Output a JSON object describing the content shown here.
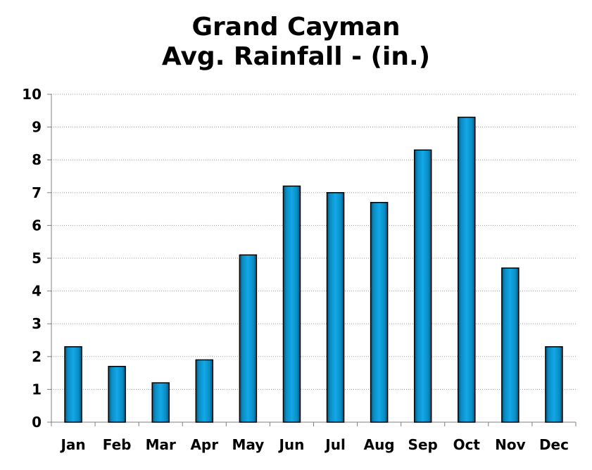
{
  "chart_data": {
    "type": "bar",
    "title_line1": "Grand Cayman",
    "title_line2": "Avg. Rainfall - (in.)",
    "categories": [
      "Jan",
      "Feb",
      "Mar",
      "Apr",
      "May",
      "Jun",
      "Jul",
      "Aug",
      "Sep",
      "Oct",
      "Nov",
      "Dec"
    ],
    "values": [
      2.3,
      1.7,
      1.2,
      1.9,
      5.1,
      7.2,
      7.0,
      6.7,
      8.3,
      9.3,
      4.7,
      2.3
    ],
    "ylim": [
      0,
      10
    ],
    "yticks": [
      "0",
      "1",
      "2",
      "3",
      "4",
      "5",
      "6",
      "7",
      "8",
      "9",
      "10"
    ],
    "grid": true,
    "bar_color": "#0a9ad6",
    "bar_edge_color": "#000000"
  }
}
